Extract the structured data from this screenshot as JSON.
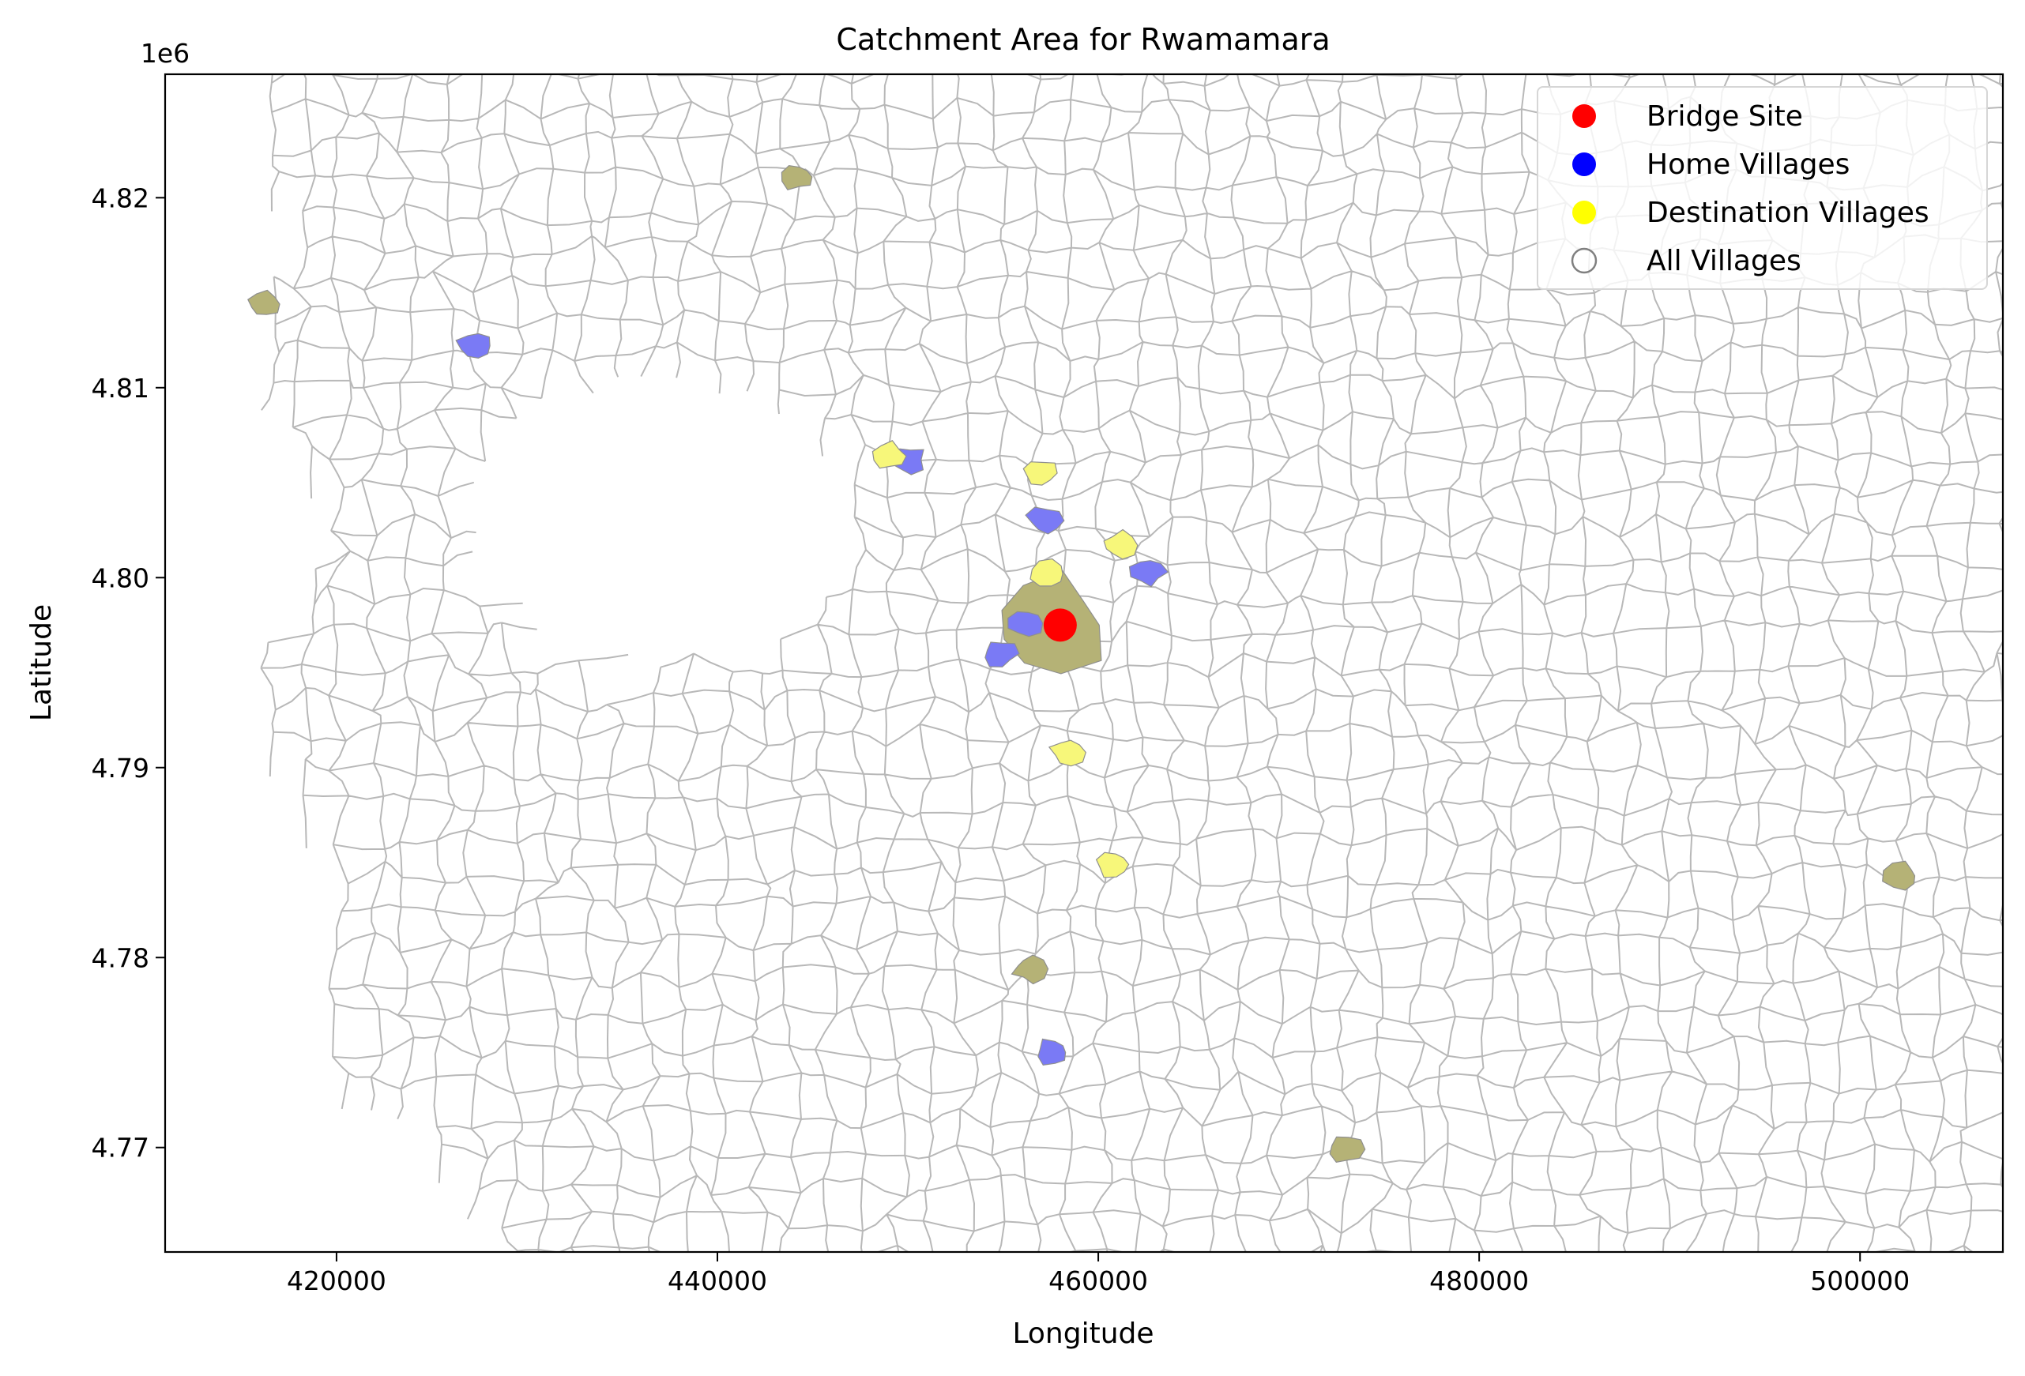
{
  "chart_data": {
    "type": "map",
    "title": "Catchment Area for Rwamamara",
    "xlabel": "Longitude",
    "ylabel": "Latitude",
    "y_offset_label": "1e6",
    "xlim": [
      411000,
      507500
    ],
    "ylim": [
      4764500,
      4826500
    ],
    "xticks": [
      420000,
      440000,
      460000,
      480000,
      500000
    ],
    "xtick_labels": [
      "420000",
      "440000",
      "460000",
      "480000",
      "500000"
    ],
    "yticks": [
      4770000,
      4780000,
      4790000,
      4800000,
      4810000,
      4820000
    ],
    "ytick_labels": [
      "4.77",
      "4.78",
      "4.79",
      "4.80",
      "4.81",
      "4.82"
    ],
    "legend": {
      "position": "upper right",
      "entries": [
        {
          "label": "Bridge Site",
          "color": "#ff0000",
          "marker": "filled-circle"
        },
        {
          "label": "Home Villages",
          "color": "#0000ff",
          "marker": "filled-circle"
        },
        {
          "label": "Destination Villages",
          "color": "#ffff00",
          "marker": "filled-circle"
        },
        {
          "label": "All Villages",
          "color": "#808080",
          "marker": "hollow-circle"
        }
      ]
    },
    "bridge_site": {
      "x": 458000,
      "y": 4797500,
      "color": "#ff0000"
    },
    "home_villages": [
      {
        "x": 450000,
        "y": 4806200
      },
      {
        "x": 457200,
        "y": 4803000
      },
      {
        "x": 462600,
        "y": 4800300
      },
      {
        "x": 456200,
        "y": 4797600
      },
      {
        "x": 454800,
        "y": 4796000
      },
      {
        "x": 457600,
        "y": 4775000
      },
      {
        "x": 427300,
        "y": 4812200
      }
    ],
    "destination_villages": [
      {
        "x": 449000,
        "y": 4806400
      },
      {
        "x": 456900,
        "y": 4805500
      },
      {
        "x": 461100,
        "y": 4801700
      },
      {
        "x": 457400,
        "y": 4800200
      },
      {
        "x": 458400,
        "y": 4790800
      },
      {
        "x": 460800,
        "y": 4784900
      }
    ],
    "overlap_villages": [
      {
        "x": 457500,
        "y": 4797500
      },
      {
        "x": 444200,
        "y": 4821100
      },
      {
        "x": 456400,
        "y": 4779400
      },
      {
        "x": 473000,
        "y": 4769900
      },
      {
        "x": 416200,
        "y": 4814400
      },
      {
        "x": 502200,
        "y": 4784300
      }
    ],
    "colors": {
      "home_fill": "#7a7af5",
      "destination_fill": "#f7f77a",
      "overlap_fill": "#b5b276",
      "boundary": "#b8b8b8"
    }
  }
}
